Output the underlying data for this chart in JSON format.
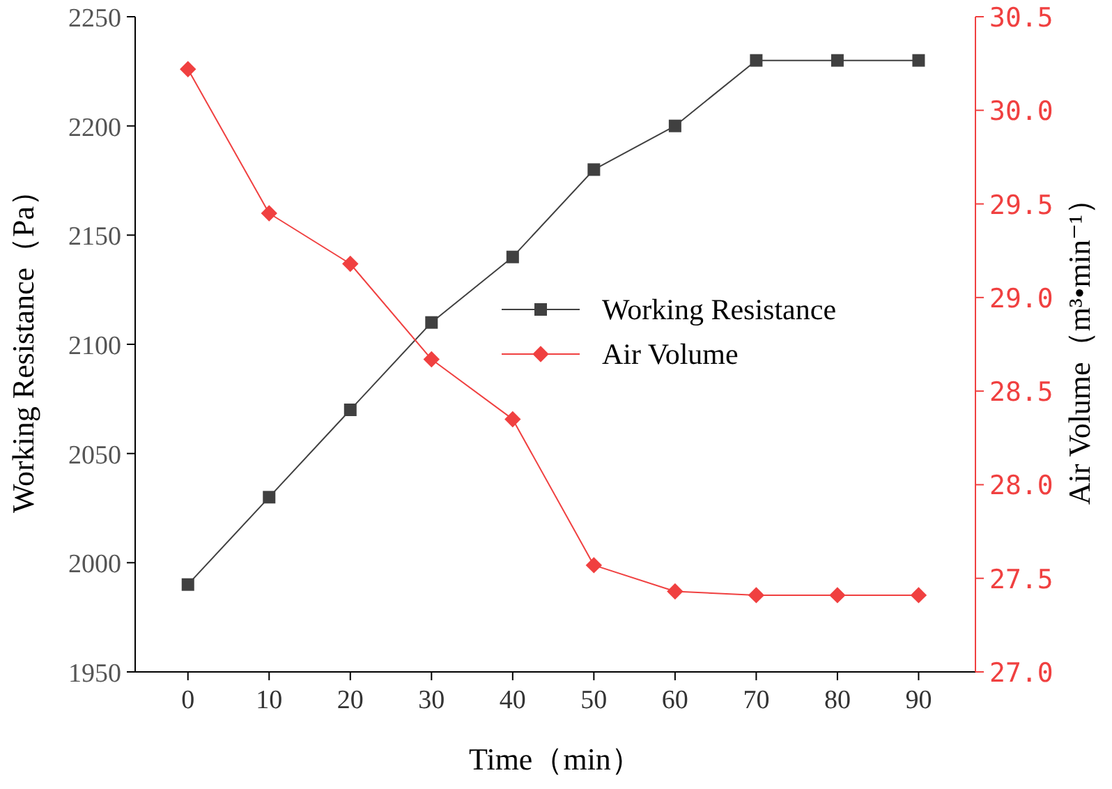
{
  "chart_data": {
    "type": "line",
    "xlabel": "Time（min）",
    "ylabel": "Working Resistance（Pa）",
    "y2label": "Air Volume（m³•min⁻¹）",
    "x": [
      0,
      10,
      20,
      30,
      40,
      50,
      60,
      70,
      80,
      90
    ],
    "xlim": [
      -6.5,
      97
    ],
    "xticks": [
      0,
      10,
      20,
      30,
      40,
      50,
      60,
      70,
      80,
      90
    ],
    "ylim": [
      1950,
      2250
    ],
    "yticks": [
      1950,
      2000,
      2050,
      2100,
      2150,
      2200,
      2250
    ],
    "y2lim": [
      27.0,
      30.5
    ],
    "y2ticks": [
      {
        "value": 27.0,
        "label": "27.0"
      },
      {
        "value": 27.5,
        "label": "27.5"
      },
      {
        "value": 28.0,
        "label": "28.0"
      },
      {
        "value": 28.5,
        "label": "28.5"
      },
      {
        "value": 29.0,
        "label": "29.0"
      },
      {
        "value": 29.5,
        "label": "29.5"
      },
      {
        "value": 30.0,
        "label": "30.0"
      },
      {
        "value": 30.5,
        "label": "30.5"
      }
    ],
    "series": [
      {
        "name": "Working Resistance",
        "color": "#404040",
        "marker": "square",
        "values": [
          1990,
          2030,
          2070,
          2110,
          2140,
          2180,
          2200,
          2230,
          2230,
          2230
        ]
      },
      {
        "name": "Air Volume",
        "color": "#f04040",
        "marker": "diamond",
        "axis": "y2",
        "values": [
          30.22,
          29.45,
          29.18,
          28.67,
          28.35,
          27.57,
          27.43,
          27.41,
          27.41,
          27.41
        ]
      }
    ],
    "legend": "right",
    "grid": false,
    "line_style": "solid"
  }
}
